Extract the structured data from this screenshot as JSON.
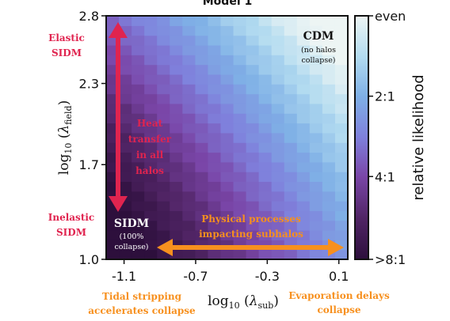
{
  "chart_data": {
    "type": "heatmap",
    "title": "Model 1",
    "xlabel": {
      "prefix": "log",
      "sub": "10",
      "open": " (",
      "var": "λ",
      "varsub": "sub",
      "close": ")"
    },
    "ylabel": {
      "prefix": "log",
      "sub": "10",
      "open": " (",
      "var": "λ",
      "varsub": "field",
      "close": ")"
    },
    "xlim": [
      -1.2,
      0.15
    ],
    "ylim": [
      1.0,
      2.8
    ],
    "xticks": [
      {
        "value": -1.1,
        "label": "-1.1"
      },
      {
        "value": -0.7,
        "label": "-0.7"
      },
      {
        "value": -0.3,
        "label": "-0.3"
      },
      {
        "value": 0.1,
        "label": "0.1"
      }
    ],
    "yticks": [
      {
        "value": 1.0,
        "label": "1.0"
      },
      {
        "value": 1.7,
        "label": "1.7"
      },
      {
        "value": 2.3,
        "label": "2.3"
      },
      {
        "value": 2.8,
        "label": "2.8"
      }
    ],
    "colorbar": {
      "label": "relative likelihood",
      "ticks": [
        {
          "frac": 1.0,
          "label": "even"
        },
        {
          "frac": 0.67,
          "label": "2:1"
        },
        {
          "frac": 0.34,
          "label": "4:1"
        },
        {
          "frac": 0.0,
          "label": ">8:1"
        }
      ],
      "stops": [
        "#2d0f3c",
        "#512566",
        "#7a46a8",
        "#7f80dc",
        "#7fb0e6",
        "#b2dbf0",
        "#edf5f4"
      ]
    },
    "grid": {
      "nx": 19,
      "ny": 25,
      "field_surface": "0.72*xn^1.05 + 0.55*yn^1.25 - 0.12"
    },
    "annotations": {
      "cdm": {
        "title": "CDM",
        "lines": [
          "(no halos",
          "collapse)"
        ]
      },
      "sidm": {
        "title": "SIDM",
        "lines": [
          "(100%",
          "collapse)"
        ]
      },
      "elastic": [
        "Elastic",
        "SIDM"
      ],
      "inelastic": [
        "Inelastic",
        "SIDM"
      ],
      "heat": [
        "Heat",
        "transfer",
        "in all",
        "halos"
      ],
      "physical": [
        "Physical processes",
        "impacting subhalos"
      ],
      "tidal": [
        "Tidal stripping",
        "accelerates collapse"
      ],
      "evap": [
        "Evaporation delays",
        "collapse"
      ]
    },
    "colors": {
      "red": "#e0244f",
      "orange": "#f7901e",
      "text_dark": "#111111",
      "text_light": "#ffffff"
    }
  }
}
